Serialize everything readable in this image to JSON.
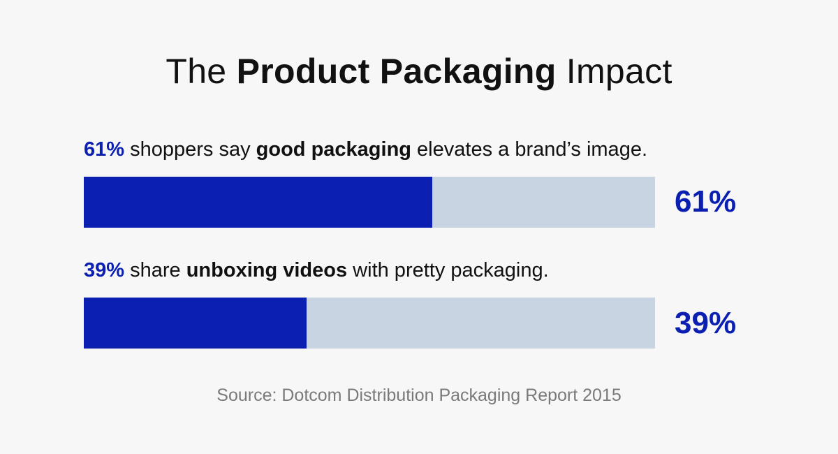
{
  "title": {
    "pre": "The ",
    "bold": "Product Packaging",
    "post": " Impact"
  },
  "statements": [
    {
      "pct": "61%",
      "text_1": " shoppers say ",
      "bold": "good packaging",
      "text_2": " elevates a brand’s image."
    },
    {
      "pct": "39%",
      "text_1": " share ",
      "bold": "unboxing videos",
      "text_2": " with pretty packaging."
    }
  ],
  "source": "Source: Dotcom Distribution Packaging Report 2015",
  "colors": {
    "accent": "#0b20b0",
    "track": "#c8d4e2",
    "background": "#f7f7f7",
    "source_text": "#7a7a7a"
  },
  "chart_data": {
    "type": "bar",
    "orientation": "horizontal",
    "categories": [
      "shoppers say good packaging elevates a brand’s image.",
      "share unboxing videos with pretty packaging."
    ],
    "values": [
      61,
      39
    ],
    "value_labels": [
      "61%",
      "39%"
    ],
    "xlim": [
      0,
      100
    ],
    "unit": "%",
    "title": "The Product Packaging Impact",
    "xlabel": "",
    "ylabel": "",
    "grid": false,
    "legend": "none"
  }
}
